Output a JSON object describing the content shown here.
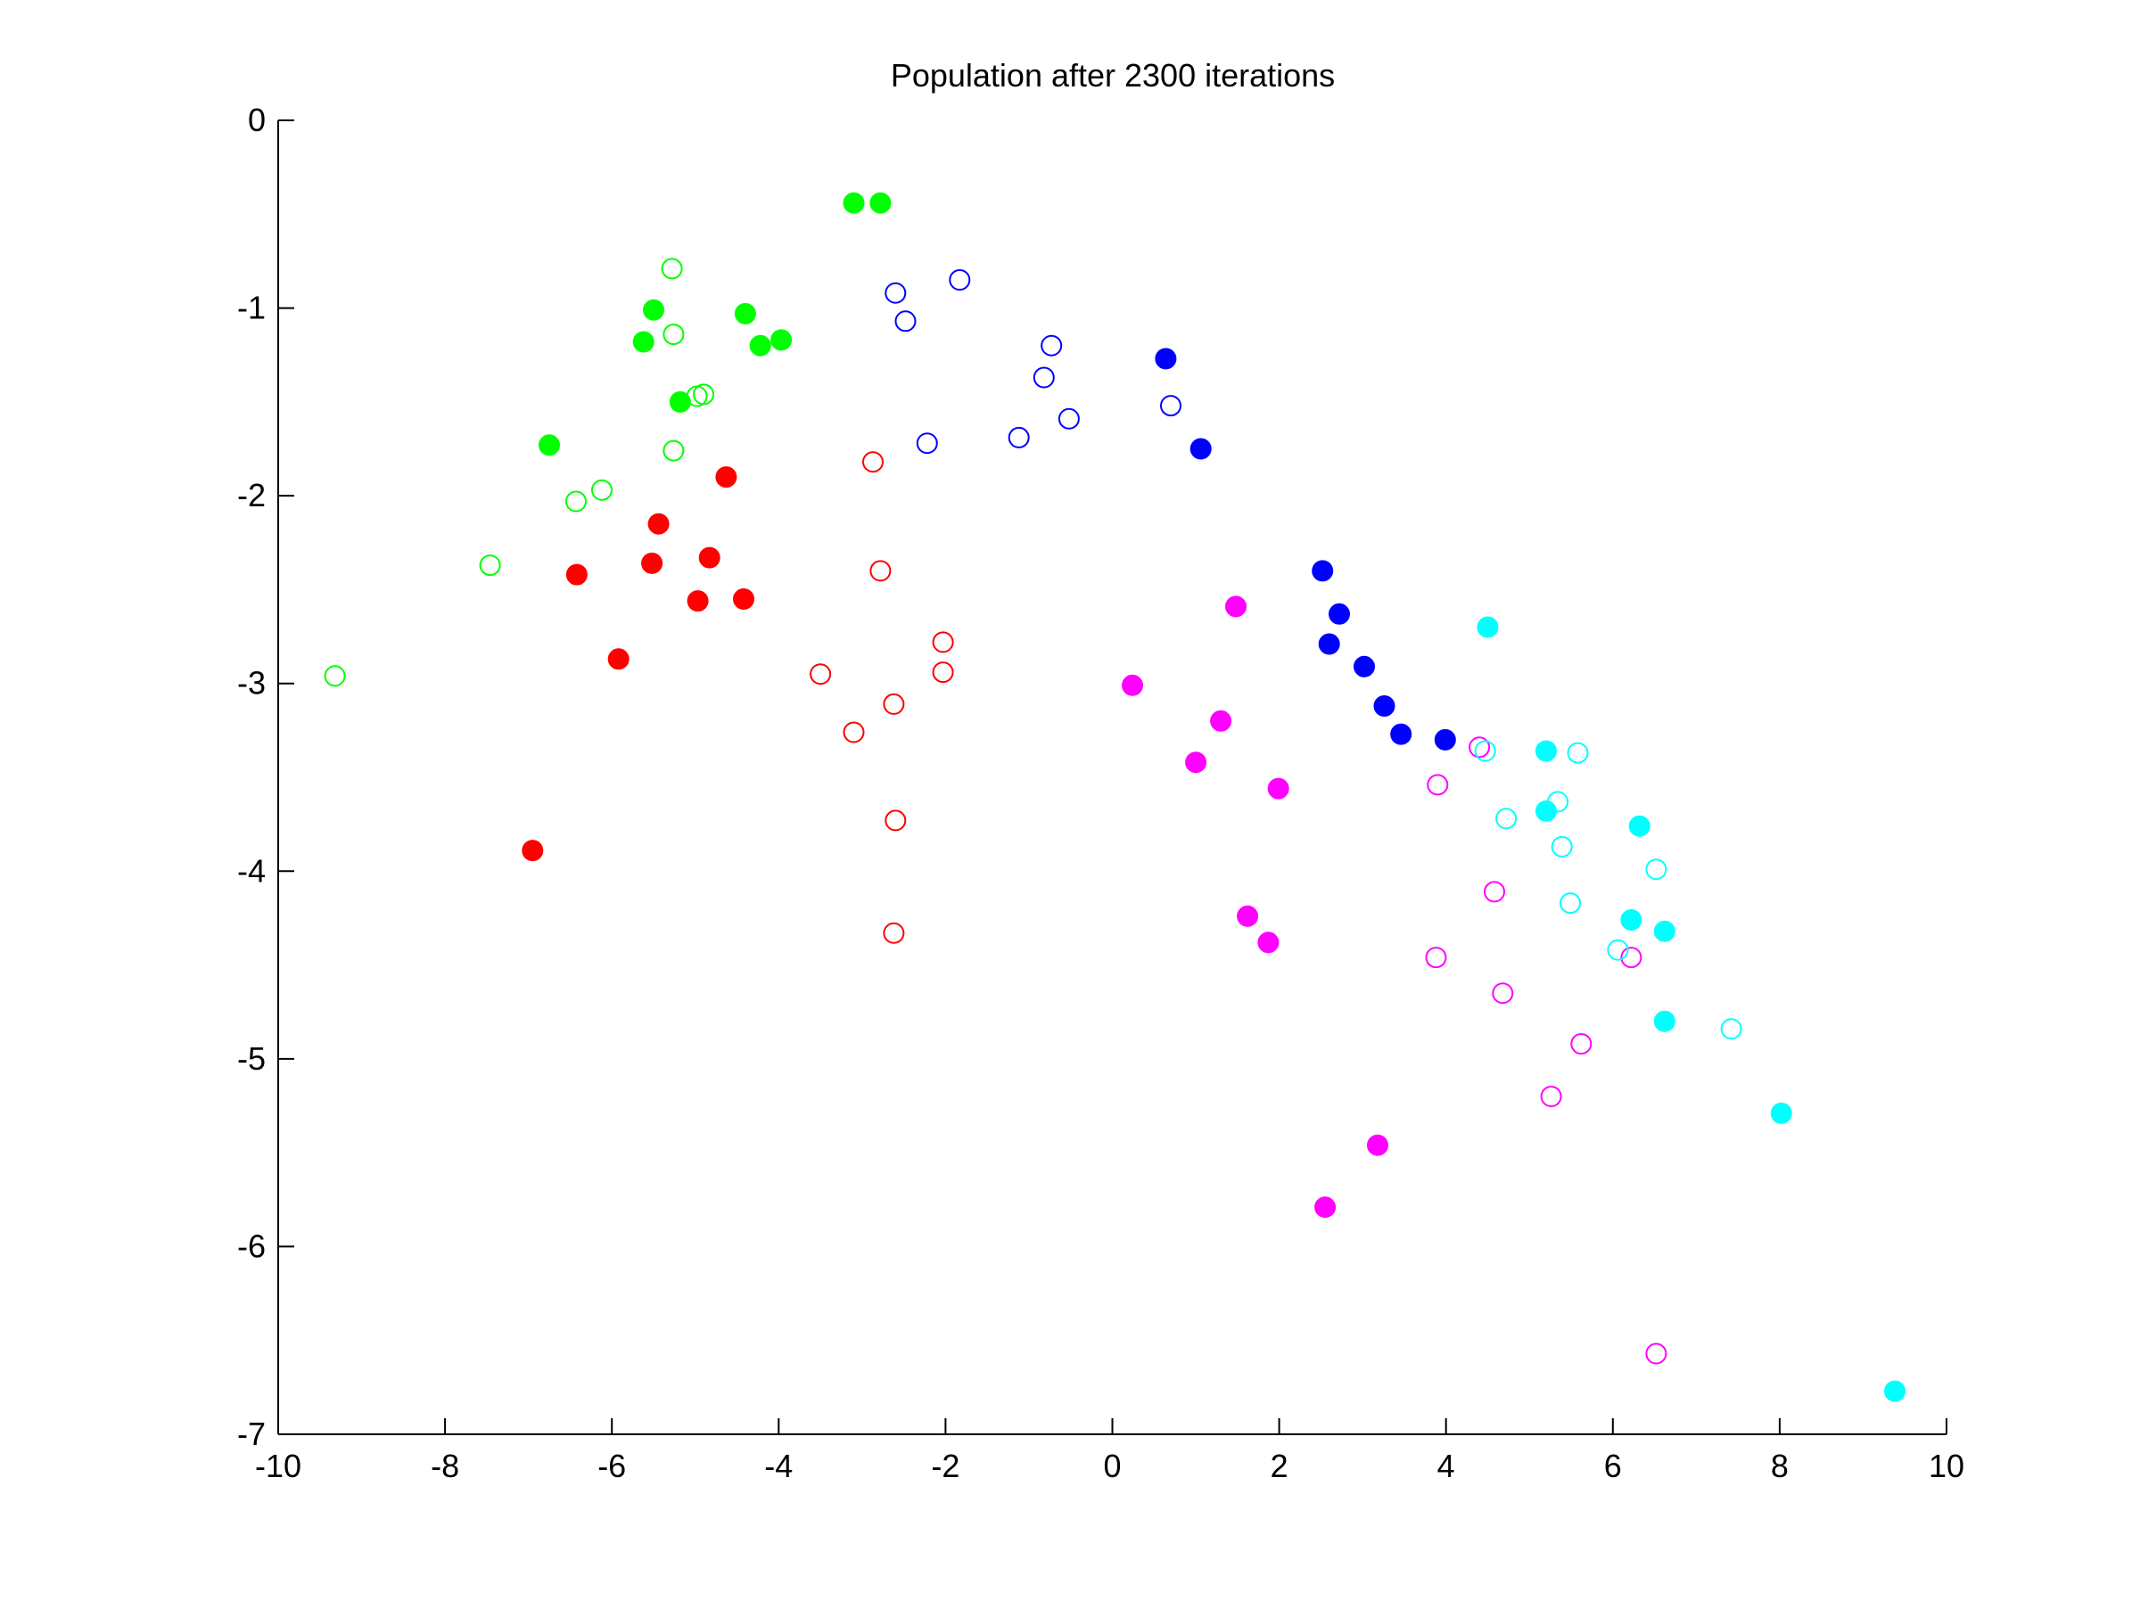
{
  "chart_data": {
    "type": "scatter",
    "title": "Population after 2300 iterations",
    "xlabel": "",
    "ylabel": "",
    "xlim": [
      -10,
      10
    ],
    "ylim": [
      -7,
      0
    ],
    "xticks": [
      -10,
      -8,
      -6,
      -4,
      -2,
      0,
      2,
      4,
      6,
      8,
      10
    ],
    "yticks": [
      0,
      -1,
      -2,
      -3,
      -4,
      -5,
      -6,
      -7
    ],
    "xtick_labels": [
      "-10",
      "-8",
      "-6",
      "-4",
      "-2",
      "0",
      "2",
      "4",
      "6",
      "8",
      "10"
    ],
    "ytick_labels": [
      "0",
      "-1",
      "-2",
      "-3",
      "-4",
      "-5",
      "-6",
      "-7"
    ],
    "grid": false,
    "legend": "none",
    "series": [
      {
        "color": "#00ff00",
        "marker": "filled-circle",
        "points": [
          [
            -3.1,
            -0.44
          ],
          [
            -2.78,
            -0.44
          ],
          [
            -5.5,
            -1.01
          ],
          [
            -4.4,
            -1.03
          ],
          [
            -5.62,
            -1.18
          ],
          [
            -4.22,
            -1.2
          ],
          [
            -3.97,
            -1.17
          ],
          [
            -5.18,
            -1.5
          ],
          [
            -6.75,
            -1.73
          ]
        ]
      },
      {
        "color": "#00ff00",
        "marker": "open-circle",
        "points": [
          [
            -5.28,
            -0.79
          ],
          [
            -5.26,
            -1.14
          ],
          [
            -4.98,
            -1.47
          ],
          [
            -4.9,
            -1.46
          ],
          [
            -5.26,
            -1.76
          ],
          [
            -6.12,
            -1.97
          ],
          [
            -6.43,
            -2.03
          ],
          [
            -7.46,
            -2.37
          ],
          [
            -9.32,
            -2.96
          ]
        ]
      },
      {
        "color": "#ff0000",
        "marker": "filled-circle",
        "points": [
          [
            -4.63,
            -1.9
          ],
          [
            -5.44,
            -2.15
          ],
          [
            -5.52,
            -2.36
          ],
          [
            -4.83,
            -2.33
          ],
          [
            -6.42,
            -2.42
          ],
          [
            -4.97,
            -2.56
          ],
          [
            -4.42,
            -2.55
          ],
          [
            -5.92,
            -2.87
          ],
          [
            -6.95,
            -3.89
          ]
        ]
      },
      {
        "color": "#ff0000",
        "marker": "open-circle",
        "points": [
          [
            -2.87,
            -1.82
          ],
          [
            -2.78,
            -2.4
          ],
          [
            -2.03,
            -2.78
          ],
          [
            -2.03,
            -2.94
          ],
          [
            -3.5,
            -2.95
          ],
          [
            -2.62,
            -3.11
          ],
          [
            -3.1,
            -3.26
          ],
          [
            -2.6,
            -3.73
          ],
          [
            -2.62,
            -4.33
          ]
        ]
      },
      {
        "color": "#0000ff",
        "marker": "filled-circle",
        "points": [
          [
            0.64,
            -1.27
          ],
          [
            1.06,
            -1.75
          ],
          [
            2.52,
            -2.4
          ],
          [
            2.72,
            -2.63
          ],
          [
            2.6,
            -2.79
          ],
          [
            3.02,
            -2.91
          ],
          [
            3.26,
            -3.12
          ],
          [
            3.46,
            -3.27
          ],
          [
            3.99,
            -3.3
          ]
        ]
      },
      {
        "color": "#0000ff",
        "marker": "open-circle",
        "points": [
          [
            -1.83,
            -0.85
          ],
          [
            -2.6,
            -0.92
          ],
          [
            -2.48,
            -1.07
          ],
          [
            -0.73,
            -1.2
          ],
          [
            -0.82,
            -1.37
          ],
          [
            -0.52,
            -1.59
          ],
          [
            0.7,
            -1.52
          ],
          [
            -1.12,
            -1.69
          ],
          [
            -2.22,
            -1.72
          ]
        ]
      },
      {
        "color": "#ff00ff",
        "marker": "filled-circle",
        "points": [
          [
            1.48,
            -2.59
          ],
          [
            0.24,
            -3.01
          ],
          [
            1.3,
            -3.2
          ],
          [
            1.0,
            -3.42
          ],
          [
            1.99,
            -3.56
          ],
          [
            1.62,
            -4.24
          ],
          [
            1.87,
            -4.38
          ],
          [
            3.18,
            -5.46
          ],
          [
            2.55,
            -5.79
          ]
        ]
      },
      {
        "color": "#ff00ff",
        "marker": "open-circle",
        "points": [
          [
            4.4,
            -3.34
          ],
          [
            3.9,
            -3.54
          ],
          [
            4.58,
            -4.11
          ],
          [
            3.88,
            -4.46
          ],
          [
            6.22,
            -4.46
          ],
          [
            4.68,
            -4.65
          ],
          [
            5.62,
            -4.92
          ],
          [
            5.26,
            -5.2
          ],
          [
            6.52,
            -6.57
          ]
        ]
      },
      {
        "color": "#00ffff",
        "marker": "filled-circle",
        "points": [
          [
            4.5,
            -2.7
          ],
          [
            5.2,
            -3.36
          ],
          [
            5.2,
            -3.68
          ],
          [
            6.32,
            -3.76
          ],
          [
            6.22,
            -4.26
          ],
          [
            6.62,
            -4.32
          ],
          [
            6.62,
            -4.8
          ],
          [
            8.02,
            -5.29
          ],
          [
            9.38,
            -6.77
          ]
        ]
      },
      {
        "color": "#00ffff",
        "marker": "open-circle",
        "points": [
          [
            4.47,
            -3.36
          ],
          [
            5.58,
            -3.37
          ],
          [
            5.34,
            -3.63
          ],
          [
            4.72,
            -3.72
          ],
          [
            5.39,
            -3.87
          ],
          [
            6.52,
            -3.99
          ],
          [
            5.49,
            -4.17
          ],
          [
            6.06,
            -4.42
          ],
          [
            7.42,
            -4.84
          ]
        ]
      }
    ]
  }
}
